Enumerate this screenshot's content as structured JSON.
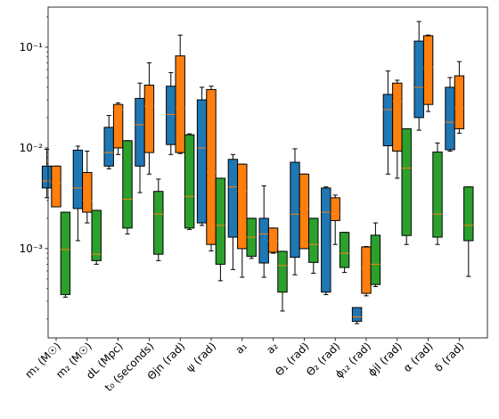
{
  "chart_data": {
    "type": "box",
    "yscale": "log",
    "ylim": [
      0.00013,
      0.25
    ],
    "y_ticks": [
      {
        "value": 0.001,
        "label": "10⁻³"
      },
      {
        "value": 0.01,
        "label": "10⁻²"
      },
      {
        "value": 0.1,
        "label": "10⁻¹"
      }
    ],
    "colors": [
      "#1f77b4",
      "#ff7f0e",
      "#2ca02c"
    ],
    "median_color": "#ff7f0e",
    "categories": [
      "m₁ (M☉)",
      "m₂ (M☉)",
      "dL (Mpc)",
      "t₀ (seconds)",
      "Θjn (rad)",
      "ψ (rad)",
      "a₁",
      "a₂",
      "Θ₁ (rad)",
      "Θ₂ (rad)",
      "ϕ₁₂ (rad)",
      "ϕjl (rad)",
      "α (rad)",
      "δ (rad)"
    ],
    "series": [
      {
        "color": "#1f77b4",
        "boxes": [
          {
            "whislo": 0.0032,
            "q1": 0.004,
            "med": 0.0047,
            "q3": 0.0066,
            "whishi": 0.0097
          },
          {
            "whislo": 0.0012,
            "q1": 0.0025,
            "med": 0.004,
            "q3": 0.0095,
            "whishi": 0.0104
          },
          {
            "whislo": 0.0062,
            "q1": 0.0066,
            "med": 0.009,
            "q3": 0.016,
            "whishi": 0.021
          },
          {
            "whislo": 0.0036,
            "q1": 0.0066,
            "med": 0.017,
            "q3": 0.031,
            "whishi": 0.044
          },
          {
            "whislo": 0.0086,
            "q1": 0.0108,
            "med": 0.0215,
            "q3": 0.041,
            "whishi": 0.056
          },
          {
            "whislo": 0.0017,
            "q1": 0.0018,
            "med": 0.01,
            "q3": 0.03,
            "whishi": 0.04
          },
          {
            "whislo": 0.00062,
            "q1": 0.0013,
            "med": 0.0041,
            "q3": 0.0077,
            "whishi": 0.0086
          },
          {
            "whislo": 0.00052,
            "q1": 0.00072,
            "med": 0.0014,
            "q3": 0.002,
            "whishi": 0.0042
          },
          {
            "whislo": 0.00055,
            "q1": 0.00082,
            "med": 0.0022,
            "q3": 0.0072,
            "whishi": 0.0098
          },
          {
            "whislo": 0.00035,
            "q1": 0.00037,
            "med": 0.0023,
            "q3": 0.004,
            "whishi": 0.0041
          },
          {
            "whislo": 0.00018,
            "q1": 0.00019,
            "med": 0.00021,
            "q3": 0.00026,
            "whishi": 0.00026
          },
          {
            "whislo": 0.0055,
            "q1": 0.0105,
            "med": 0.024,
            "q3": 0.034,
            "whishi": 0.058
          },
          {
            "whislo": 0.015,
            "q1": 0.02,
            "med": 0.04,
            "q3": 0.115,
            "whishi": 0.18
          },
          {
            "whislo": 0.0093,
            "q1": 0.0096,
            "med": 0.018,
            "q3": 0.04,
            "whishi": 0.05
          }
        ]
      },
      {
        "color": "#ff7f0e",
        "boxes": [
          {
            "whislo": 0.0026,
            "q1": 0.0026,
            "med": 0.0045,
            "q3": 0.0066,
            "whishi": 0.0066
          },
          {
            "whislo": 0.0018,
            "q1": 0.0023,
            "med": 0.003,
            "q3": 0.0057,
            "whishi": 0.0093
          },
          {
            "whislo": 0.0086,
            "q1": 0.01,
            "med": 0.024,
            "q3": 0.027,
            "whishi": 0.028
          },
          {
            "whislo": 0.0055,
            "q1": 0.009,
            "med": 0.026,
            "q3": 0.042,
            "whishi": 0.07
          },
          {
            "whislo": 0.0088,
            "q1": 0.009,
            "med": 0.025,
            "q3": 0.082,
            "whishi": 0.132
          },
          {
            "whislo": 0.00095,
            "q1": 0.0011,
            "med": 0.0058,
            "q3": 0.038,
            "whishi": 0.041
          },
          {
            "whislo": 0.00052,
            "q1": 0.001,
            "med": 0.0037,
            "q3": 0.0069,
            "whishi": 0.0069
          },
          {
            "whislo": 0.0009,
            "q1": 0.00092,
            "med": 0.0012,
            "q3": 0.0016,
            "whishi": 0.0016
          },
          {
            "whislo": 0.001,
            "q1": 0.001,
            "med": 0.0025,
            "q3": 0.0055,
            "whishi": 0.0055
          },
          {
            "whislo": 0.0011,
            "q1": 0.0019,
            "med": 0.0022,
            "q3": 0.0032,
            "whishi": 0.0034
          },
          {
            "whislo": 0.00034,
            "q1": 0.00036,
            "med": 0.00065,
            "q3": 0.00104,
            "whishi": 0.00105
          },
          {
            "whislo": 0.005,
            "q1": 0.0093,
            "med": 0.029,
            "q3": 0.044,
            "whishi": 0.047
          },
          {
            "whislo": 0.023,
            "q1": 0.027,
            "med": 0.063,
            "q3": 0.13,
            "whishi": 0.132
          },
          {
            "whislo": 0.014,
            "q1": 0.0155,
            "med": 0.025,
            "q3": 0.052,
            "whishi": 0.072
          }
        ]
      },
      {
        "color": "#2ca02c",
        "boxes": [
          {
            "whislo": 0.00033,
            "q1": 0.00035,
            "med": 0.00098,
            "q3": 0.0023,
            "whishi": 0.0023
          },
          {
            "whislo": 0.0007,
            "q1": 0.00076,
            "med": 0.00088,
            "q3": 0.0024,
            "whishi": 0.0024
          },
          {
            "whislo": 0.0014,
            "q1": 0.0016,
            "med": 0.0031,
            "q3": 0.0118,
            "whishi": 0.0118
          },
          {
            "whislo": 0.00076,
            "q1": 0.00088,
            "med": 0.0022,
            "q3": 0.0037,
            "whishi": 0.0049
          },
          {
            "whislo": 0.00155,
            "q1": 0.0016,
            "med": 0.0033,
            "q3": 0.0135,
            "whishi": 0.0138
          },
          {
            "whislo": 0.00048,
            "q1": 0.0007,
            "med": 0.0017,
            "q3": 0.005,
            "whishi": 0.005
          },
          {
            "whislo": 0.0008,
            "q1": 0.00084,
            "med": 0.0013,
            "q3": 0.002,
            "whishi": 0.002
          },
          {
            "whislo": 0.00024,
            "q1": 0.00037,
            "med": 0.00068,
            "q3": 0.00094,
            "whishi": 0.00094
          },
          {
            "whislo": 0.00057,
            "q1": 0.00073,
            "med": 0.0011,
            "q3": 0.002,
            "whishi": 0.002
          },
          {
            "whislo": 0.00058,
            "q1": 0.00065,
            "med": 0.0009,
            "q3": 0.00145,
            "whishi": 0.00145
          },
          {
            "whislo": 0.00042,
            "q1": 0.00044,
            "med": 0.0007,
            "q3": 0.00136,
            "whishi": 0.0018
          },
          {
            "whislo": 0.0011,
            "q1": 0.00135,
            "med": 0.0063,
            "q3": 0.0155,
            "whishi": 0.0155
          },
          {
            "whislo": 0.0011,
            "q1": 0.0013,
            "med": 0.0022,
            "q3": 0.0091,
            "whishi": 0.0112
          },
          {
            "whislo": 0.00053,
            "q1": 0.0012,
            "med": 0.0017,
            "q3": 0.0041,
            "whishi": 0.0041
          }
        ]
      }
    ]
  }
}
